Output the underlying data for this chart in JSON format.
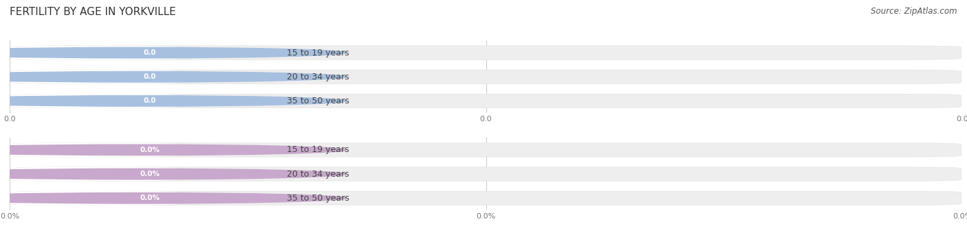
{
  "title": "FERTILITY BY AGE IN YORKVILLE",
  "source": "Source: ZipAtlas.com",
  "sections": [
    {
      "categories": [
        "15 to 19 years",
        "20 to 34 years",
        "35 to 50 years"
      ],
      "values": [
        0.0,
        0.0,
        0.0
      ],
      "bar_color": "#a8c0df",
      "bar_bg_color": "#eeeeee",
      "is_percent": false,
      "tick_label_suffix": ""
    },
    {
      "categories": [
        "15 to 19 years",
        "20 to 34 years",
        "35 to 50 years"
      ],
      "values": [
        0.0,
        0.0,
        0.0
      ],
      "bar_color": "#c8a8cc",
      "bar_bg_color": "#eeeeee",
      "is_percent": true,
      "tick_label_suffix": "%"
    }
  ],
  "bg_color": "#ffffff",
  "grid_color": "#cccccc",
  "title_fontsize": 11,
  "label_fontsize": 9,
  "source_fontsize": 8.5,
  "tick_fontsize": 8,
  "bar_height": 0.58,
  "x_ticks": [
    0.0,
    0.5,
    1.0
  ],
  "x_tick_labels_top": [
    "0.0",
    "0.0",
    "0.0"
  ],
  "x_tick_labels_bot": [
    "0.0%",
    "0.0%",
    "0.0%"
  ]
}
